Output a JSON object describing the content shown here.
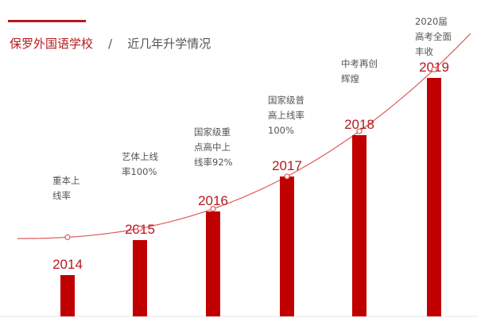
{
  "header": {
    "school_name": "保罗外国语学校",
    "separator": "/",
    "subtitle": "近几年升学情况"
  },
  "chart_data": {
    "type": "bar",
    "categories": [
      "2014",
      "2015",
      "2016",
      "2017",
      "2018",
      "2019"
    ],
    "values": [
      13,
      24,
      33,
      44,
      57,
      75
    ],
    "value_unit": "relative bar height (no value axis shown)",
    "trend_line": true,
    "annotations": [
      {
        "category": "2014",
        "lines": [
          "重本上",
          "线率"
        ]
      },
      {
        "category": "2015",
        "lines": [
          "艺体上线",
          "率100%"
        ]
      },
      {
        "category": "2016",
        "lines": [
          "国家级重",
          "点高中上",
          "线率92%"
        ]
      },
      {
        "category": "2017",
        "lines": [
          "国家级普",
          "高上线率",
          "100%"
        ]
      },
      {
        "category": "2018",
        "lines": [
          "中考再创",
          "辉煌"
        ]
      },
      {
        "category": "2019",
        "lines": [
          "2020届",
          "高考全面",
          "丰收"
        ]
      }
    ],
    "colors": {
      "bar": "#c00000",
      "year_label": "#b5191f",
      "trend": "#e05a5a",
      "accent": "#b5191f",
      "note_text": "#555555"
    }
  }
}
